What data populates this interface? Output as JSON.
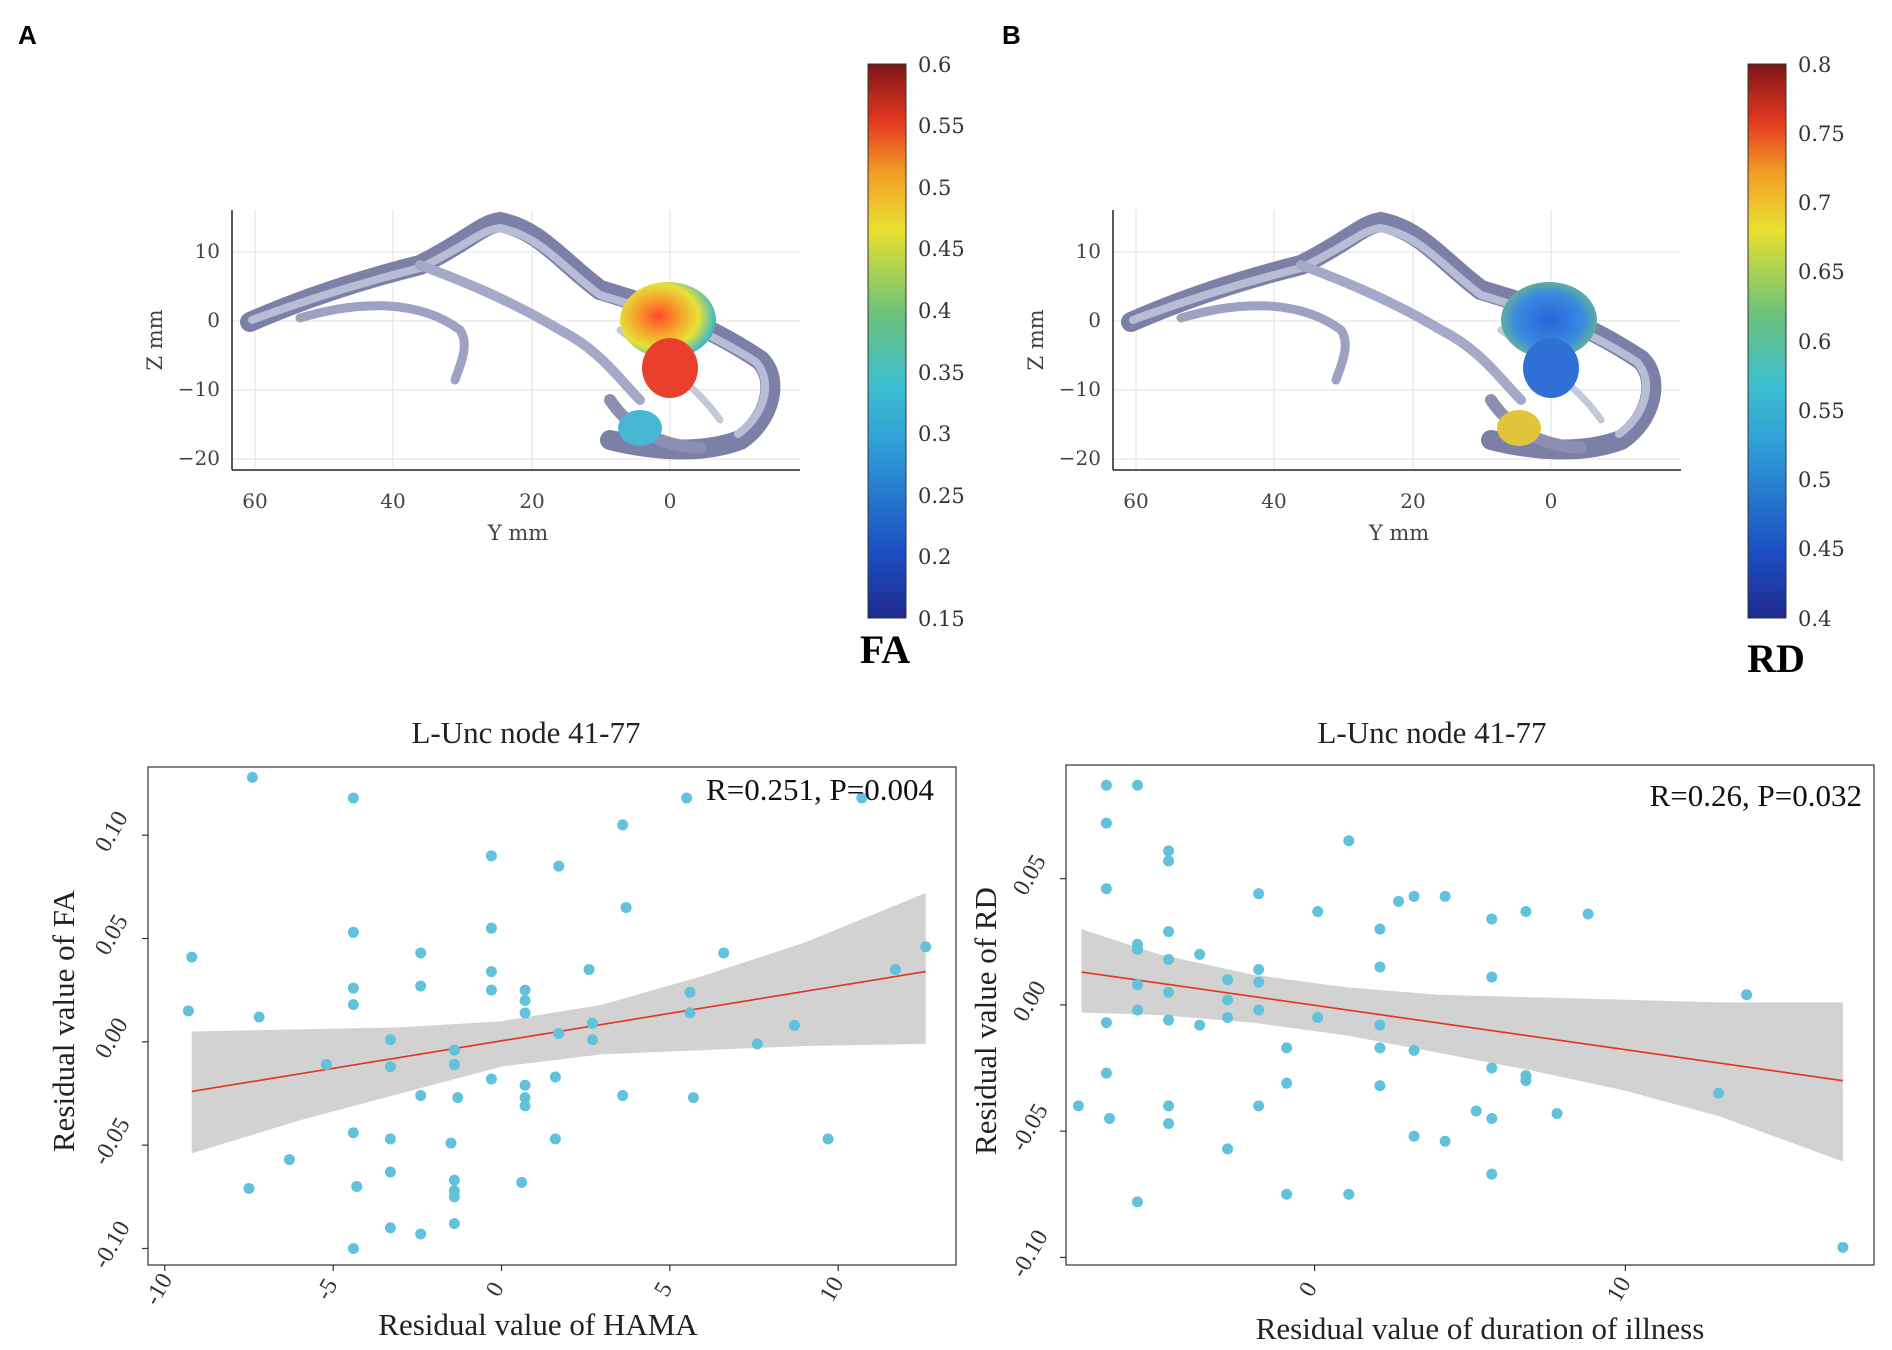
{
  "panels": {
    "a": "A",
    "b": "B"
  },
  "tract_plots": [
    {
      "xticks": [
        "60",
        "40",
        "20",
        "0"
      ],
      "yticks": [
        "10",
        "0",
        "−10",
        "−20"
      ],
      "xlabel": "Y  mm",
      "ylabel": "Z  mm",
      "colorbar": {
        "label": "FA",
        "ticks": [
          "0.6",
          "0.55",
          "0.5",
          "0.45",
          "0.4",
          "0.35",
          "0.3",
          "0.25",
          "0.2",
          "0.15"
        ]
      }
    },
    {
      "xticks": [
        "60",
        "40",
        "20",
        "0"
      ],
      "yticks": [
        "10",
        "0",
        "−10",
        "−20"
      ],
      "xlabel": "Y  mm",
      "ylabel": "Z  mm",
      "colorbar": {
        "label": "RD",
        "ticks": [
          "0.8",
          "0.75",
          "0.7",
          "0.65",
          "0.6",
          "0.55",
          "0.5",
          "0.45",
          "0.4"
        ]
      }
    }
  ],
  "chart_data": [
    {
      "type": "scatter",
      "title": "L-Unc node 41-77",
      "annotation": "R=0.251, P=0.004",
      "xlabel": "Residual value of HAMA",
      "ylabel": "Residual value of FA",
      "xlim": [
        -10.5,
        13.5
      ],
      "ylim": [
        -0.108,
        0.133
      ],
      "xticks": [
        "-10",
        "-5",
        "0",
        "5",
        "10"
      ],
      "yticks": [
        "-0.10",
        "-0.05",
        "0.00",
        "0.05",
        "0.10"
      ],
      "fit_line": {
        "x": [
          -9.2,
          12.6
        ],
        "y": [
          -0.024,
          0.034
        ]
      },
      "ci_band": {
        "x": [
          -9.2,
          -6,
          -3,
          0,
          3,
          6,
          9,
          12.6
        ],
        "upper": [
          0.005,
          0.006,
          0.007,
          0.01,
          0.018,
          0.032,
          0.048,
          0.072
        ],
        "lower": [
          -0.054,
          -0.038,
          -0.025,
          -0.012,
          -0.006,
          -0.004,
          -0.002,
          -0.001
        ]
      },
      "points": [
        [
          -9.2,
          0.041
        ],
        [
          -9.3,
          0.015
        ],
        [
          -7.4,
          0.128
        ],
        [
          -7.2,
          0.012
        ],
        [
          -7.5,
          -0.071
        ],
        [
          -6.3,
          -0.057
        ],
        [
          -5.2,
          -0.011
        ],
        [
          -4.4,
          0.118
        ],
        [
          -4.4,
          0.053
        ],
        [
          -4.4,
          0.026
        ],
        [
          -4.4,
          0.018
        ],
        [
          -4.4,
          -0.044
        ],
        [
          -4.3,
          -0.07
        ],
        [
          -4.4,
          -0.1
        ],
        [
          -3.3,
          0.001
        ],
        [
          -3.3,
          -0.012
        ],
        [
          -3.3,
          -0.047
        ],
        [
          -3.3,
          -0.063
        ],
        [
          -3.3,
          -0.09
        ],
        [
          -2.4,
          0.043
        ],
        [
          -2.4,
          0.027
        ],
        [
          -2.4,
          -0.026
        ],
        [
          -2.4,
          -0.093
        ],
        [
          -1.4,
          -0.004
        ],
        [
          -1.4,
          -0.011
        ],
        [
          -1.3,
          -0.027
        ],
        [
          -1.5,
          -0.049
        ],
        [
          -1.4,
          -0.067
        ],
        [
          -1.4,
          -0.072
        ],
        [
          -1.4,
          -0.075
        ],
        [
          -1.4,
          -0.088
        ],
        [
          -0.3,
          0.09
        ],
        [
          -0.3,
          0.055
        ],
        [
          -0.3,
          0.034
        ],
        [
          -0.3,
          0.025
        ],
        [
          -0.3,
          -0.018
        ],
        [
          0.7,
          0.025
        ],
        [
          0.7,
          0.02
        ],
        [
          0.7,
          0.014
        ],
        [
          0.7,
          -0.021
        ],
        [
          0.7,
          -0.027
        ],
        [
          0.7,
          -0.031
        ],
        [
          0.6,
          -0.068
        ],
        [
          1.7,
          0.085
        ],
        [
          1.7,
          0.004
        ],
        [
          1.6,
          -0.017
        ],
        [
          1.6,
          -0.047
        ],
        [
          2.6,
          0.035
        ],
        [
          2.7,
          0.009
        ],
        [
          2.7,
          0.001
        ],
        [
          3.6,
          0.105
        ],
        [
          3.7,
          0.065
        ],
        [
          3.6,
          -0.026
        ],
        [
          5.5,
          0.118
        ],
        [
          5.6,
          0.024
        ],
        [
          5.6,
          0.014
        ],
        [
          5.7,
          -0.027
        ],
        [
          6.6,
          0.043
        ],
        [
          7.6,
          -0.001
        ],
        [
          8.7,
          0.008
        ],
        [
          9.7,
          -0.047
        ],
        [
          10.7,
          0.118
        ],
        [
          11.7,
          0.035
        ],
        [
          12.6,
          0.046
        ]
      ]
    },
    {
      "type": "scatter",
      "title": "L-Unc node 41-77",
      "annotation": "R=0.26, P=0.032",
      "xlabel": "Residual value of duration of illness",
      "ylabel": "Residual value of RD",
      "xlim": [
        -8,
        18
      ],
      "ylim": [
        -0.103,
        0.095
      ],
      "xticks": [
        "0",
        "10"
      ],
      "yticks": [
        "-0.10",
        "-0.05",
        "0.00",
        "0.05"
      ],
      "fit_line": {
        "x": [
          -7.5,
          17
        ],
        "y": [
          0.013,
          -0.03
        ]
      },
      "ci_band": {
        "x": [
          -7.5,
          -5,
          -2,
          1,
          4,
          7,
          10,
          13,
          17
        ],
        "upper": [
          0.03,
          0.02,
          0.012,
          0.007,
          0.004,
          0.003,
          0.002,
          0.001,
          0.001
        ],
        "lower": [
          -0.003,
          -0.004,
          -0.007,
          -0.012,
          -0.019,
          -0.026,
          -0.034,
          -0.044,
          -0.062
        ]
      },
      "points": [
        [
          -7.6,
          -0.04
        ],
        [
          -6.7,
          0.087
        ],
        [
          -6.7,
          0.072
        ],
        [
          -6.7,
          0.046
        ],
        [
          -6.7,
          -0.007
        ],
        [
          -6.7,
          -0.027
        ],
        [
          -6.6,
          -0.045
        ],
        [
          -5.7,
          0.087
        ],
        [
          -5.7,
          0.024
        ],
        [
          -5.7,
          0.022
        ],
        [
          -5.7,
          0.008
        ],
        [
          -5.7,
          -0.002
        ],
        [
          -5.7,
          -0.078
        ],
        [
          -4.7,
          0.061
        ],
        [
          -4.7,
          0.057
        ],
        [
          -4.7,
          0.029
        ],
        [
          -4.7,
          0.018
        ],
        [
          -4.7,
          0.005
        ],
        [
          -4.7,
          -0.006
        ],
        [
          -4.7,
          -0.04
        ],
        [
          -4.7,
          -0.047
        ],
        [
          -3.7,
          0.02
        ],
        [
          -3.7,
          -0.008
        ],
        [
          -2.8,
          0.01
        ],
        [
          -2.8,
          0.002
        ],
        [
          -2.8,
          -0.005
        ],
        [
          -2.8,
          -0.057
        ],
        [
          -1.8,
          0.044
        ],
        [
          -1.8,
          0.014
        ],
        [
          -1.8,
          0.009
        ],
        [
          -1.8,
          -0.002
        ],
        [
          -1.8,
          -0.04
        ],
        [
          -0.9,
          -0.017
        ],
        [
          -0.9,
          -0.031
        ],
        [
          -0.9,
          -0.075
        ],
        [
          0.1,
          0.037
        ],
        [
          0.1,
          -0.005
        ],
        [
          1.1,
          0.065
        ],
        [
          1.1,
          -0.075
        ],
        [
          2.1,
          0.03
        ],
        [
          2.1,
          0.015
        ],
        [
          2.1,
          -0.008
        ],
        [
          2.1,
          -0.017
        ],
        [
          2.1,
          -0.032
        ],
        [
          2.7,
          0.041
        ],
        [
          3.2,
          0.043
        ],
        [
          3.2,
          -0.018
        ],
        [
          3.2,
          -0.052
        ],
        [
          4.2,
          0.043
        ],
        [
          4.2,
          -0.054
        ],
        [
          5.2,
          -0.042
        ],
        [
          5.7,
          0.034
        ],
        [
          5.7,
          0.011
        ],
        [
          5.7,
          -0.025
        ],
        [
          5.7,
          -0.045
        ],
        [
          5.7,
          -0.067
        ],
        [
          6.8,
          0.037
        ],
        [
          6.8,
          -0.028
        ],
        [
          6.8,
          -0.03
        ],
        [
          7.8,
          -0.043
        ],
        [
          8.8,
          0.036
        ],
        [
          13.0,
          -0.035
        ],
        [
          13.9,
          0.004
        ],
        [
          17.0,
          -0.096
        ]
      ]
    }
  ]
}
